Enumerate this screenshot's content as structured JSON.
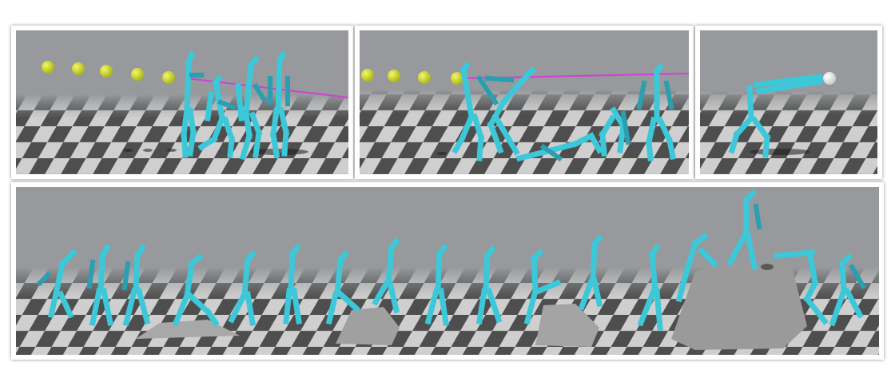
{
  "figure": {
    "panels": [
      {
        "id": "panel-1",
        "scene": "character-ball-sequence",
        "ball_color": "#c8d81e",
        "ball_count": 5,
        "line_color": "#d040d8"
      },
      {
        "id": "panel-2",
        "scene": "character-ball-sequence",
        "ball_color": "#c8d81e",
        "ball_count": 4,
        "line_color": "#d040d8"
      },
      {
        "id": "panel-3",
        "scene": "character-reaching-ball",
        "ball_color": "#f0f0f0"
      },
      {
        "id": "panel-4",
        "scene": "character-terrain-traversal",
        "obstacle_color": "#a8a8a8"
      }
    ],
    "colors": {
      "sky": "#97999c",
      "floor_dark": "#4a4a4a",
      "floor_light": "#cfcfcf",
      "character": "#3cc8d8"
    }
  }
}
